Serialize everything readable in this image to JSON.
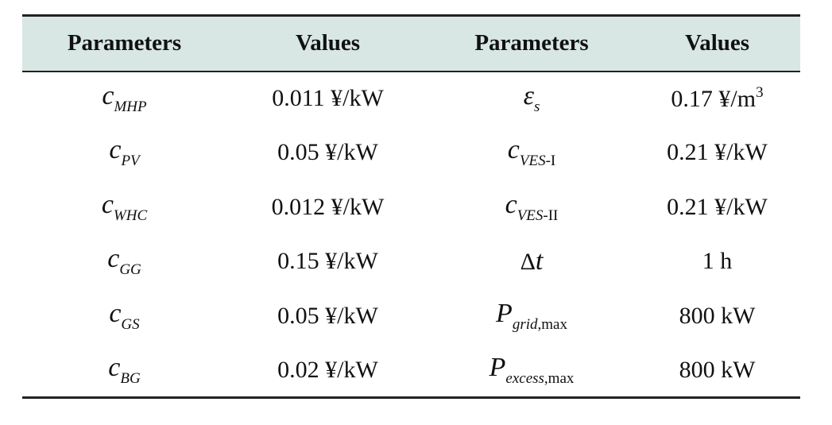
{
  "table": {
    "header": [
      "Parameters",
      "Values",
      "Parameters",
      "Values"
    ],
    "rows": [
      [
        [
          {
            "text": "c",
            "style": "italic"
          },
          {
            "text": "MHP",
            "style": "sub-italic"
          }
        ],
        "0.011 ¥/kW",
        [
          {
            "text": "ε",
            "style": "italic"
          },
          {
            "text": "s",
            "style": "sub-italic"
          }
        ],
        [
          {
            "text": "0.17 ¥/m",
            "style": "plain"
          },
          {
            "text": "3",
            "style": "sup"
          }
        ]
      ],
      [
        [
          {
            "text": "c",
            "style": "italic"
          },
          {
            "text": "PV",
            "style": "sub-italic"
          }
        ],
        "0.05 ¥/kW",
        [
          {
            "text": "c",
            "style": "italic"
          },
          {
            "text": "VES",
            "style": "sub-italic"
          },
          {
            "text": "-I",
            "style": "sub"
          }
        ],
        "0.21 ¥/kW"
      ],
      [
        [
          {
            "text": "c",
            "style": "italic"
          },
          {
            "text": "WHC",
            "style": "sub-italic"
          }
        ],
        "0.012 ¥/kW",
        [
          {
            "text": "c",
            "style": "italic"
          },
          {
            "text": "VES",
            "style": "sub-italic"
          },
          {
            "text": "-II",
            "style": "sub"
          }
        ],
        "0.21 ¥/kW"
      ],
      [
        [
          {
            "text": "c",
            "style": "italic"
          },
          {
            "text": "GG",
            "style": "sub-italic"
          }
        ],
        "0.15 ¥/kW",
        [
          {
            "text": "Δ",
            "style": "plain"
          },
          {
            "text": "t",
            "style": "italic"
          }
        ],
        "1 h"
      ],
      [
        [
          {
            "text": "c",
            "style": "italic"
          },
          {
            "text": "GS",
            "style": "sub-italic"
          }
        ],
        "0.05 ¥/kW",
        [
          {
            "text": "P",
            "style": "italic"
          },
          {
            "text": "grid",
            "style": "sub-italic"
          },
          {
            "text": ",max",
            "style": "sub"
          }
        ],
        "800 kW"
      ],
      [
        [
          {
            "text": "c",
            "style": "italic"
          },
          {
            "text": "BG",
            "style": "sub-italic"
          }
        ],
        "0.02 ¥/kW",
        [
          {
            "text": "P",
            "style": "italic"
          },
          {
            "text": "excess",
            "style": "sub-italic"
          },
          {
            "text": ",max",
            "style": "sub"
          }
        ],
        "800 kW"
      ]
    ]
  }
}
